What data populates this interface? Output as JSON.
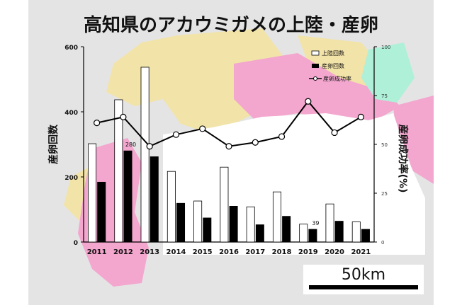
{
  "chart_data": {
    "type": "bar+line",
    "title": "高知県のアカウミガメの上陸・産卵",
    "ylabel_left": "産卵回数",
    "ylabel_right": "産卵成功率(%)",
    "categories": [
      "2011",
      "2012",
      "2013",
      "2014",
      "2015",
      "2016",
      "2017",
      "2018",
      "2019",
      "2020",
      "2021"
    ],
    "ylim_left": [
      0,
      600
    ],
    "yticks_left": [
      "0",
      "200",
      "400",
      "600"
    ],
    "ylim_right": [
      0,
      100
    ],
    "yticks_right": [
      "0",
      "25",
      "50",
      "75",
      "100"
    ],
    "series": [
      {
        "name": "上陸回数",
        "type": "bar",
        "color": "#ffffff",
        "values": [
          302,
          437,
          537,
          217,
          126,
          230,
          108,
          154,
          55,
          117,
          62
        ]
      },
      {
        "name": "産卵回数",
        "type": "bar",
        "color": "#000000",
        "values": [
          184,
          280,
          262,
          119,
          74,
          110,
          53,
          79,
          39,
          64,
          39
        ]
      },
      {
        "name": "産卵成功率",
        "type": "line",
        "color": "#000000",
        "values": [
          61,
          64,
          49,
          55,
          58,
          49,
          51,
          54,
          72,
          56,
          64
        ]
      }
    ],
    "data_labels": [
      {
        "series": "産卵回数",
        "category": "2012",
        "text": "280"
      },
      {
        "series": "産卵回数",
        "category": "2019",
        "text": "39"
      }
    ],
    "legend_position": "top-right"
  },
  "scalebar": {
    "label": "50km"
  },
  "colors": {
    "map_gray": "#e4e4e4",
    "map_tan": "#f2e3a8",
    "map_pink": "#f3a6ce",
    "map_green": "#aef0d8",
    "sea": "#ffffff"
  }
}
